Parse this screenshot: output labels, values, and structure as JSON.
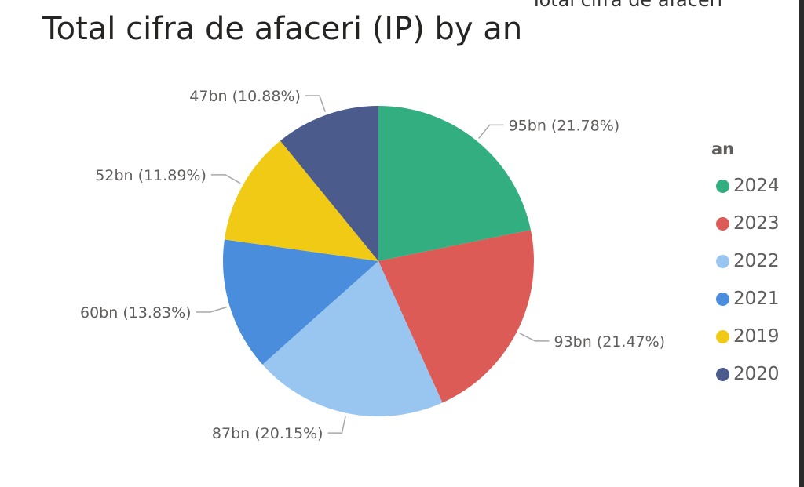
{
  "header": {
    "cut_title": "Total cifra de afaceri"
  },
  "chart_data": {
    "type": "pie",
    "title": "Total cifra de afaceri (IP) by an",
    "legend_title": "an",
    "legend_position": "right",
    "slices": [
      {
        "name": "2024",
        "value": 95,
        "label": "95bn (21.78%)",
        "percent": 21.78,
        "color": "#33ae81"
      },
      {
        "name": "2023",
        "value": 93,
        "label": "93bn (21.47%)",
        "percent": 21.47,
        "color": "#dd5b57"
      },
      {
        "name": "2022",
        "value": 87,
        "label": "87bn (20.15%)",
        "percent": 20.15,
        "color": "#99c6f0"
      },
      {
        "name": "2021",
        "value": 60,
        "label": "60bn (13.83%)",
        "percent": 13.83,
        "color": "#4a8ddc"
      },
      {
        "name": "2019",
        "value": 52,
        "label": "52bn (11.89%)",
        "percent": 11.89,
        "color": "#f0ca15"
      },
      {
        "name": "2020",
        "value": 47,
        "label": "47bn (10.88%)",
        "percent": 10.88,
        "color": "#4b5b8c"
      }
    ]
  }
}
